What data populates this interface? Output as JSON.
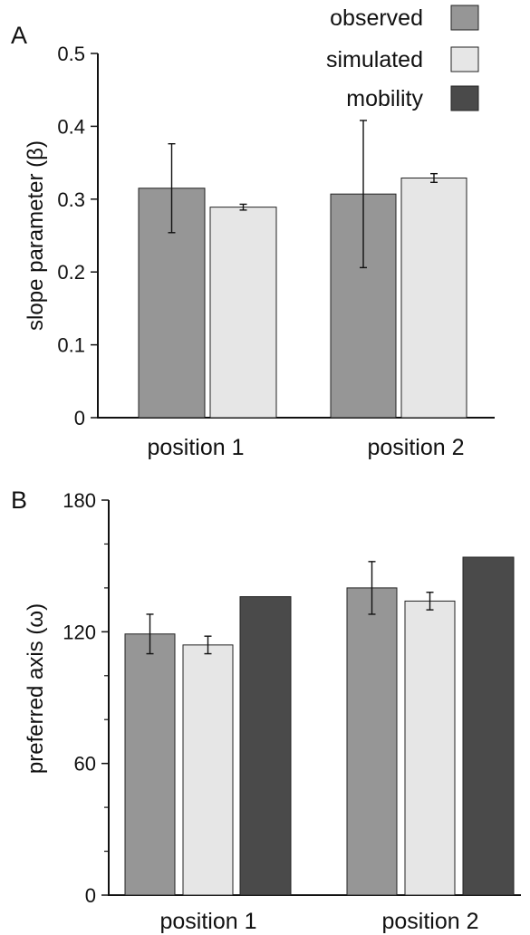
{
  "colors": {
    "observed": "#969696",
    "simulated": "#e6e6e6",
    "mobility": "#4a4a4a",
    "axis": "#111111"
  },
  "chart_data": [
    {
      "type": "bar",
      "panel_label": "A",
      "ylabel": "slope parameter (β)",
      "xlabel": "",
      "ylim": [
        0,
        0.5
      ],
      "yticks": [
        0,
        0.1,
        0.2,
        0.3,
        0.4,
        0.5
      ],
      "ytick_labels": [
        "0",
        "0.1",
        "0.2",
        "0.3",
        "0.4",
        "0.5"
      ],
      "categories": [
        "position 1",
        "position 2"
      ],
      "series": [
        {
          "name": "observed",
          "values": [
            0.315,
            0.307
          ],
          "errors": [
            0.061,
            0.101
          ]
        },
        {
          "name": "simulated",
          "values": [
            0.289,
            0.329
          ],
          "errors": [
            0.004,
            0.006
          ]
        }
      ],
      "legend": {
        "placement": "top-right",
        "entries": [
          "observed",
          "simulated",
          "mobility"
        ]
      },
      "grid": false
    },
    {
      "type": "bar",
      "panel_label": "B",
      "ylabel": "preferred axis (ω)",
      "xlabel": "",
      "ylim": [
        0,
        180
      ],
      "yticks": [
        0,
        60,
        120,
        180
      ],
      "ytick_labels": [
        "0",
        "60",
        "120",
        "180"
      ],
      "categories": [
        "position 1",
        "position 2"
      ],
      "series": [
        {
          "name": "observed",
          "values": [
            119,
            140
          ],
          "errors": [
            9,
            12
          ]
        },
        {
          "name": "simulated",
          "values": [
            114,
            134
          ],
          "errors": [
            4,
            4
          ]
        },
        {
          "name": "mobility",
          "values": [
            136,
            154
          ],
          "errors": [
            null,
            null
          ]
        }
      ],
      "grid": false
    }
  ]
}
